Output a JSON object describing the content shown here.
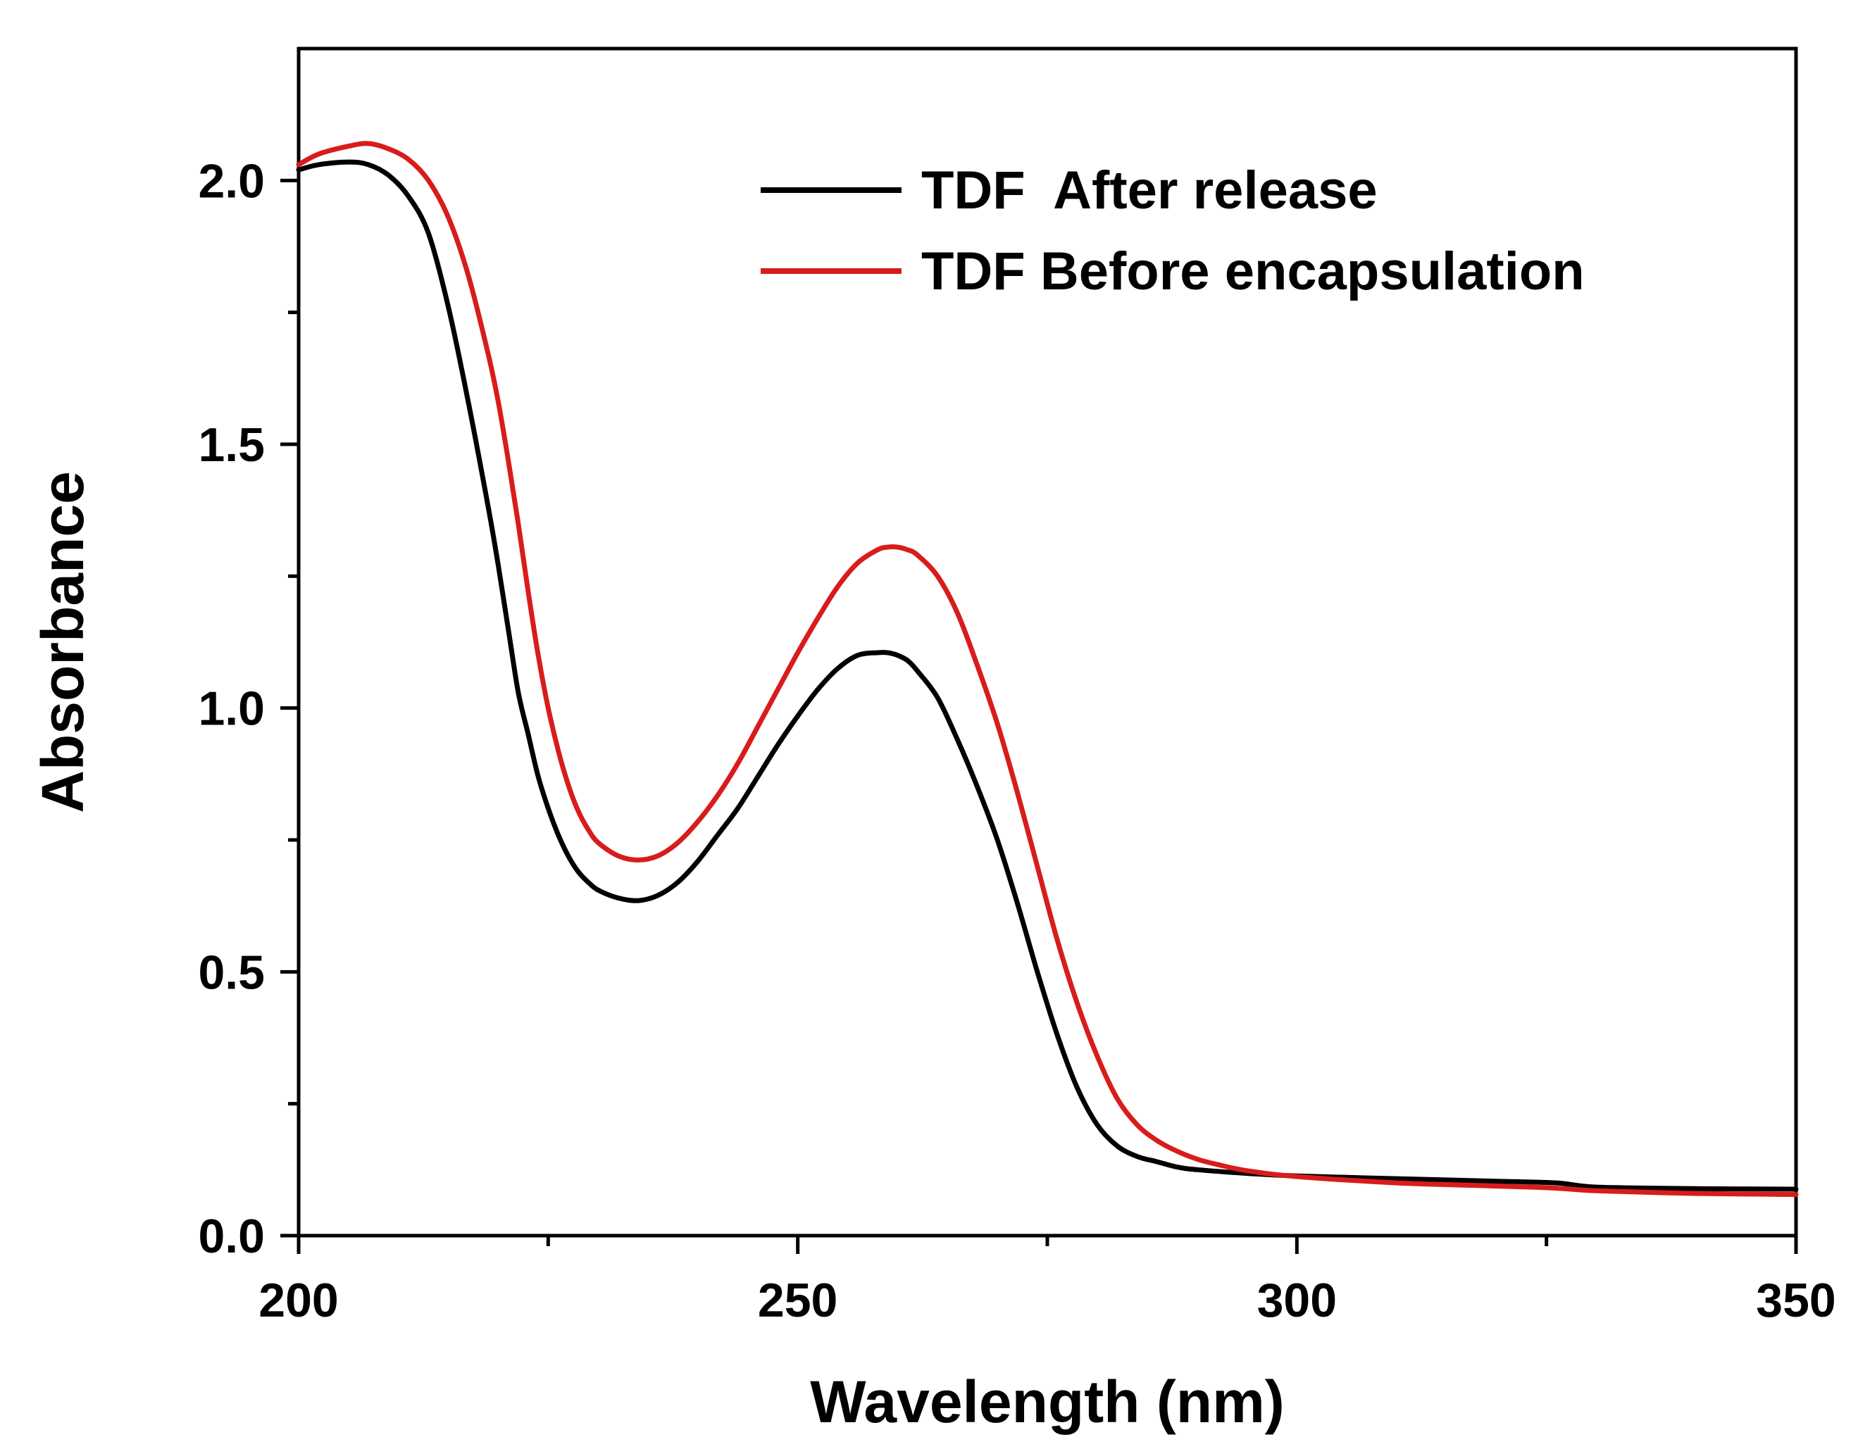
{
  "chart_data": {
    "type": "line",
    "title": "",
    "xlabel": "Wavelength (nm)",
    "ylabel": "Absorbance",
    "xlim": [
      200,
      350
    ],
    "ylim": [
      0.0,
      2.25
    ],
    "xticks": [
      200,
      250,
      300,
      350
    ],
    "xtick_labels": [
      "200",
      "250",
      "300",
      "350"
    ],
    "xminor_ticks": [
      225,
      275,
      325
    ],
    "yticks": [
      0.0,
      0.5,
      1.0,
      1.5,
      2.0
    ],
    "ytick_labels": [
      "0.0",
      "0.5",
      "1.0",
      "1.5",
      "2.0"
    ],
    "yminor_ticks": [
      0.25,
      0.75,
      1.25,
      1.75
    ],
    "legend_position": "top-right",
    "series": [
      {
        "name": "TDF  After release",
        "color": "#000000",
        "x": [
          200,
          202,
          205,
          207,
          209,
          211,
          213,
          215,
          217,
          219,
          220,
          221,
          222,
          223,
          224,
          225,
          226,
          227,
          228,
          229,
          230,
          232,
          234,
          236,
          238,
          240,
          242,
          244,
          246,
          248,
          250,
          252,
          254,
          256,
          258,
          259,
          260,
          261,
          262,
          264,
          266,
          268,
          270,
          272,
          274,
          276,
          278,
          280,
          282,
          284,
          286,
          288,
          290,
          295,
          300,
          310,
          320,
          326,
          330,
          340,
          350
        ],
        "y": [
          2.02,
          2.03,
          2.035,
          2.03,
          2.01,
          1.97,
          1.9,
          1.76,
          1.58,
          1.38,
          1.27,
          1.15,
          1.03,
          0.95,
          0.87,
          0.81,
          0.76,
          0.72,
          0.69,
          0.67,
          0.655,
          0.64,
          0.635,
          0.645,
          0.67,
          0.71,
          0.76,
          0.81,
          0.87,
          0.93,
          0.985,
          1.035,
          1.075,
          1.1,
          1.105,
          1.105,
          1.1,
          1.09,
          1.07,
          1.02,
          0.94,
          0.85,
          0.75,
          0.63,
          0.5,
          0.38,
          0.28,
          0.21,
          0.17,
          0.15,
          0.14,
          0.13,
          0.125,
          0.118,
          0.113,
          0.108,
          0.103,
          0.1,
          0.092,
          0.089,
          0.088
        ]
      },
      {
        "name": "TDF Before encapsulation",
        "color": "#d81c1c",
        "x": [
          200,
          202,
          205,
          207,
          209,
          211,
          213,
          215,
          217,
          219,
          220,
          221,
          222,
          223,
          224,
          225,
          226,
          227,
          228,
          229,
          230,
          232,
          234,
          236,
          238,
          240,
          242,
          244,
          246,
          248,
          250,
          252,
          254,
          256,
          258,
          259,
          260,
          261,
          262,
          264,
          266,
          268,
          270,
          272,
          274,
          276,
          278,
          280,
          282,
          284,
          286,
          288,
          290,
          292,
          295,
          300,
          310,
          320,
          326,
          330,
          340,
          350
        ],
        "y": [
          2.03,
          2.05,
          2.065,
          2.07,
          2.06,
          2.04,
          2.0,
          1.93,
          1.82,
          1.67,
          1.58,
          1.47,
          1.35,
          1.22,
          1.1,
          1.0,
          0.92,
          0.855,
          0.805,
          0.77,
          0.745,
          0.72,
          0.712,
          0.72,
          0.745,
          0.785,
          0.835,
          0.895,
          0.965,
          1.035,
          1.105,
          1.17,
          1.23,
          1.275,
          1.3,
          1.305,
          1.305,
          1.3,
          1.29,
          1.25,
          1.18,
          1.08,
          0.97,
          0.84,
          0.7,
          0.56,
          0.44,
          0.34,
          0.26,
          0.21,
          0.18,
          0.16,
          0.145,
          0.135,
          0.123,
          0.112,
          0.1,
          0.094,
          0.09,
          0.085,
          0.08,
          0.078
        ]
      }
    ]
  }
}
